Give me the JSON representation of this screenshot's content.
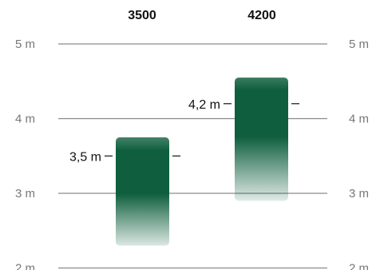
{
  "chart_data": {
    "type": "bar",
    "categories": [
      "3500",
      "4200"
    ],
    "series": [
      {
        "values": [
          3.5,
          4.2
        ],
        "labels": [
          "3,5 m",
          "4,2 m"
        ],
        "ranges": [
          [
            2.3,
            3.75
          ],
          [
            2.9,
            4.55
          ]
        ]
      }
    ],
    "y_ticks": [
      2,
      3,
      4,
      5
    ],
    "y_tick_labels": [
      "2 m",
      "3 m",
      "4 m",
      "5 m"
    ],
    "ylim": [
      2,
      5
    ],
    "grid": true,
    "colors": {
      "bar": "#0f5f3e",
      "bar_fade": "#ffffff",
      "grid": "#8a8a8a",
      "text": "#111111",
      "axis_text": "#777777"
    }
  }
}
